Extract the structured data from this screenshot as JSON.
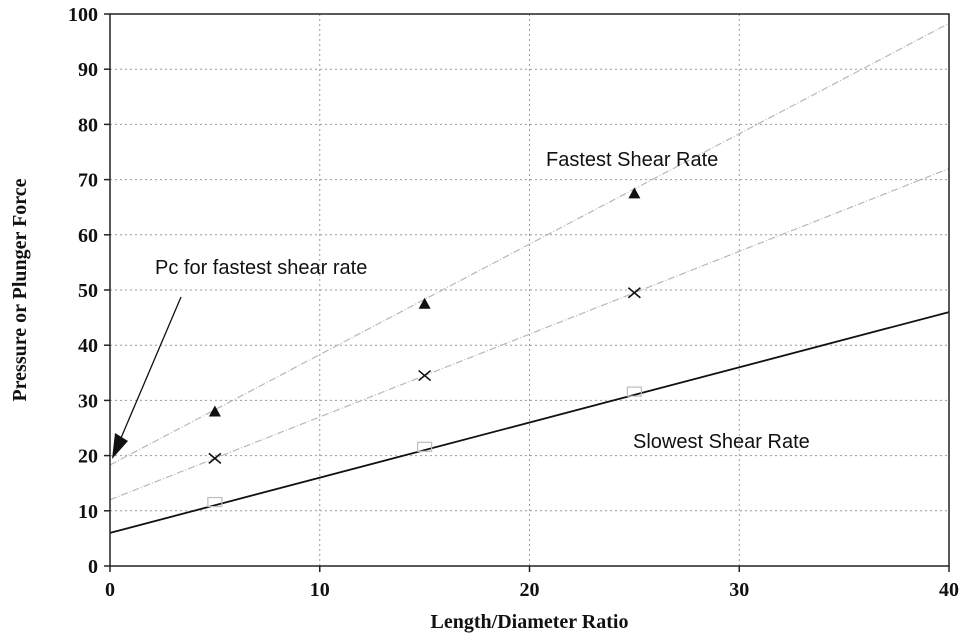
{
  "chart_data": {
    "type": "scatter",
    "title": "",
    "xlabel": "Length/Diameter Ratio",
    "ylabel": "Pressure or Plunger Force",
    "xlim": [
      0,
      40
    ],
    "ylim": [
      0,
      100
    ],
    "x_ticks": [
      0,
      10,
      20,
      30,
      40
    ],
    "y_ticks": [
      0,
      10,
      20,
      30,
      40,
      50,
      60,
      70,
      80,
      90,
      100
    ],
    "grid": true,
    "series": [
      {
        "marker": "triangle",
        "points": [
          [
            5,
            28
          ],
          [
            15,
            47.5
          ],
          [
            25,
            67.5
          ]
        ],
        "fit_line": {
          "intercept": 18.3,
          "slope": 2.0
        },
        "line_color": "#b8b8b8"
      },
      {
        "marker": "x",
        "points": [
          [
            5,
            19.5
          ],
          [
            15,
            34.5
          ],
          [
            25,
            49.5
          ]
        ],
        "fit_line": {
          "intercept": 12.0,
          "slope": 1.5
        },
        "line_color": "#b8b8b8"
      },
      {
        "marker": "square",
        "points": [
          [
            5,
            11.5
          ],
          [
            15,
            21.5
          ],
          [
            25,
            31.5
          ]
        ],
        "fit_line": {
          "intercept": 6.0,
          "slope": 1.0
        },
        "line_color": "#111111"
      }
    ],
    "annotations": [
      {
        "text": "Fastest Shear Rate"
      },
      {
        "text": "Slowest Shear Rate"
      },
      {
        "text": "Pc for fastest shear rate",
        "arrow_to": [
          0,
          18.3
        ]
      }
    ]
  }
}
